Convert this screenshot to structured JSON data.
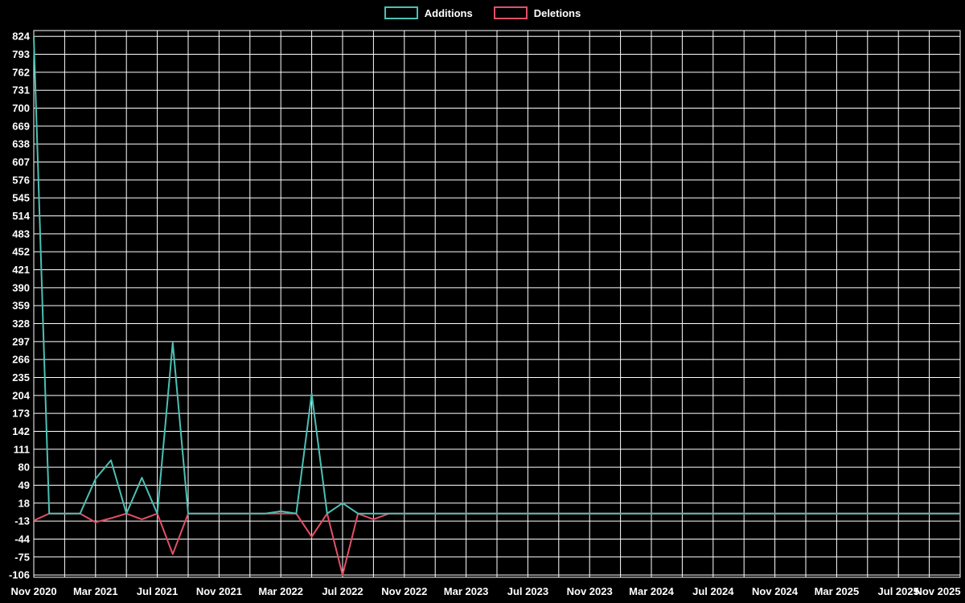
{
  "chart_data": {
    "type": "line",
    "title": "",
    "legend_position": "top-center",
    "background": "#000000",
    "text_color": "#ffffff",
    "grid": {
      "on": true,
      "color": "#ffffff"
    },
    "x_axis": {
      "start": "Nov 2020",
      "end": "Nov 2025",
      "tick_every_months": 4,
      "grid_every_months": 2,
      "tick_labels": [
        "Nov 2020",
        "Mar 2021",
        "Jul 2021",
        "Nov 2021",
        "Mar 2022",
        "Jul 2022",
        "Nov 2022",
        "Mar 2023",
        "Jul 2023",
        "Nov 2023",
        "Mar 2024",
        "Jul 2024",
        "Nov 2024",
        "Mar 2025",
        "Jul 2025",
        "Nov 2025"
      ]
    },
    "y_axis": {
      "min": -106,
      "max": 824,
      "step": 31,
      "ticks": [
        824,
        793,
        762,
        731,
        700,
        669,
        638,
        607,
        576,
        545,
        514,
        483,
        452,
        421,
        390,
        359,
        328,
        297,
        266,
        235,
        204,
        173,
        142,
        111,
        80,
        49,
        18,
        -13,
        -44,
        -75,
        -106
      ]
    },
    "series": [
      {
        "name": "Additions",
        "color": "#4cc0b4",
        "values": [
          824,
          0,
          0,
          0,
          60,
          92,
          0,
          62,
          0,
          295,
          0,
          0,
          0,
          0,
          0,
          0,
          4,
          0,
          207,
          0,
          18,
          0,
          0,
          0,
          0,
          0,
          0,
          0,
          0,
          0,
          0,
          0,
          0,
          0,
          0,
          0,
          0,
          0,
          0,
          0,
          0,
          0,
          0,
          0,
          0,
          0,
          0,
          0,
          0,
          0,
          0,
          0,
          0,
          0,
          0,
          0,
          0,
          0,
          0,
          0,
          0
        ]
      },
      {
        "name": "Deletions",
        "color": "#e25068",
        "values": [
          -12,
          0,
          0,
          0,
          -15,
          -8,
          0,
          -10,
          0,
          -70,
          0,
          0,
          0,
          0,
          0,
          0,
          0,
          0,
          -40,
          0,
          -106,
          0,
          -10,
          0,
          0,
          0,
          0,
          0,
          0,
          0,
          0,
          0,
          0,
          0,
          0,
          0,
          0,
          0,
          0,
          0,
          0,
          0,
          0,
          0,
          0,
          0,
          0,
          0,
          0,
          0,
          0,
          0,
          0,
          0,
          0,
          0,
          0,
          0,
          0,
          0,
          0
        ]
      }
    ]
  }
}
